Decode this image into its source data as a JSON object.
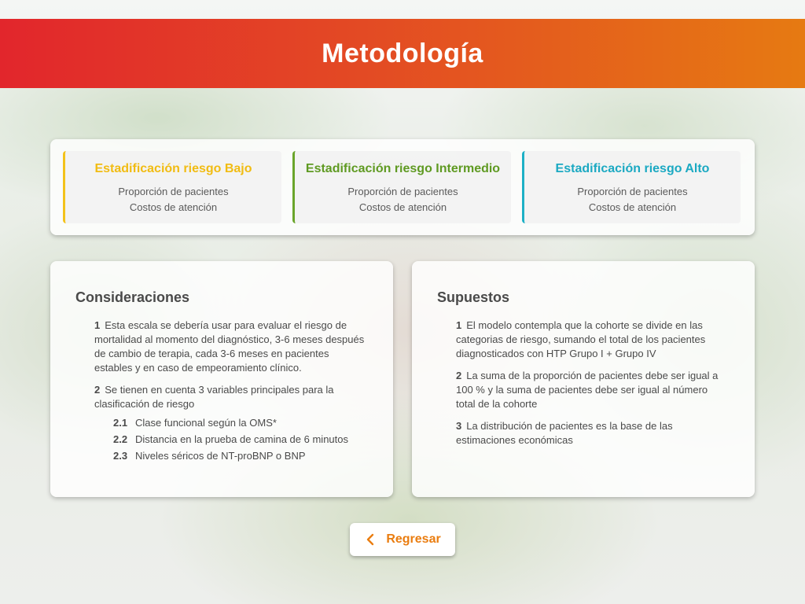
{
  "header": {
    "title": "Metodología"
  },
  "risk_cards": [
    {
      "title": "Estadificación riesgo Bajo",
      "line1": "Proporción de pacientes",
      "line2": "Costos de atención",
      "color": "#f1bc12"
    },
    {
      "title": "Estadificación riesgo Intermedio",
      "line1": "Proporción de pacientes",
      "line2": "Costos de atención",
      "color": "#5f9a22"
    },
    {
      "title": "Estadificación riesgo Alto",
      "line1": "Proporción de pacientes",
      "line2": "Costos de atención",
      "color": "#1ba9c2"
    }
  ],
  "consideraciones": {
    "title": "Consideraciones",
    "items": [
      {
        "num": "1",
        "text": "Esta escala se debería usar para evaluar el riesgo de mortalidad al momento del diagnóstico, 3-6 meses después de cambio de terapia, cada 3-6 meses en pacientes estables y en caso de empeoramiento clínico."
      },
      {
        "num": "2",
        "text": "Se tienen en cuenta 3 variables principales para la clasificación de riesgo"
      }
    ],
    "subitems": [
      {
        "num": "2.1",
        "text": "Clase funcional según la OMS*"
      },
      {
        "num": "2.2",
        "text": "Distancia en la prueba de camina de 6 minutos"
      },
      {
        "num": "2.3",
        "text": "Niveles séricos de NT-proBNP o BNP"
      }
    ]
  },
  "supuestos": {
    "title": "Supuestos",
    "items": [
      {
        "num": "1",
        "text": "El modelo contempla que la cohorte se divide en las categorias de riesgo, sumando el total de los pacientes diagnosticados con HTP Grupo I + Grupo IV"
      },
      {
        "num": "2",
        "text": "La suma de la proporción de pacientes debe ser igual a 100 % y la suma de pacientes debe ser igual al número total de la cohorte"
      },
      {
        "num": "3",
        "text": "La distribución de pacientes es la base de las estimaciones económicas"
      }
    ]
  },
  "back_button": {
    "label": "Regresar",
    "icon": "chevron-left-icon",
    "color": "#ea7d10"
  }
}
